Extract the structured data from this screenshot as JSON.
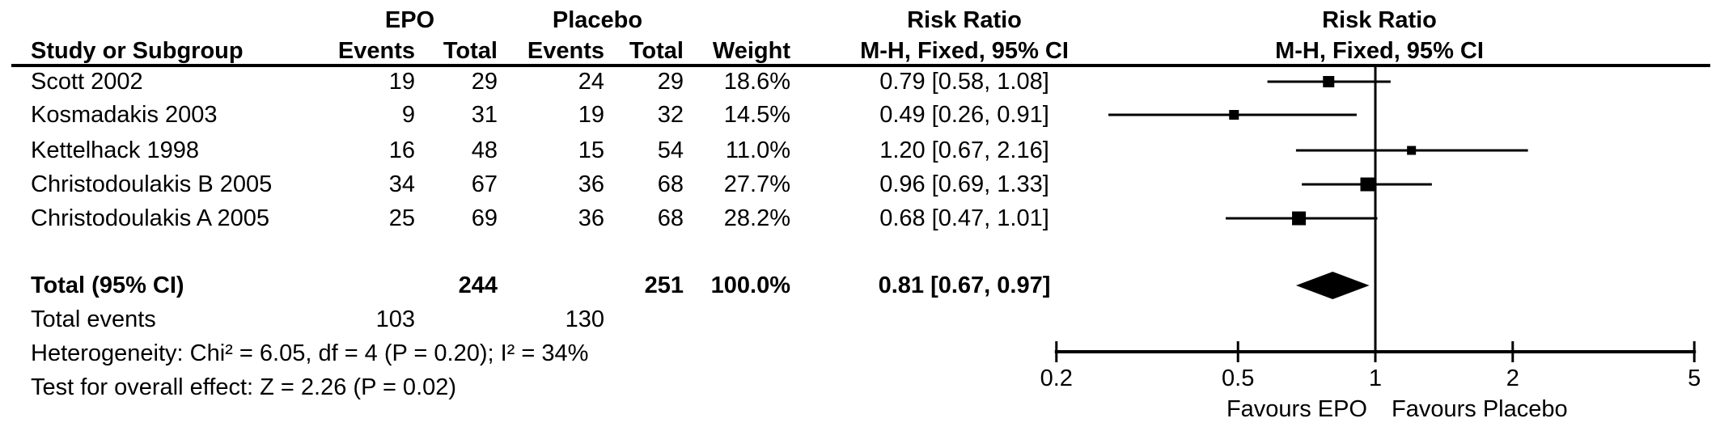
{
  "header": {
    "study_col": "Study or Subgroup",
    "group1": "EPO",
    "group2": "Placebo",
    "events": "Events",
    "total": "Total",
    "weight": "Weight",
    "effect1_title": "Risk Ratio",
    "effect1_sub": "M-H, Fixed, 95% CI",
    "effect2_title": "Risk Ratio",
    "effect2_sub": "M-H, Fixed, 95% CI"
  },
  "chart_data": {
    "type": "forest",
    "x_scale": "log",
    "x_ticks": [
      "0.2",
      "0.5",
      "1",
      "2",
      "5"
    ],
    "x_range": [
      0.2,
      5
    ],
    "null_value": 1,
    "marker_color": "#000000",
    "axis_labels": {
      "left": "Favours EPO",
      "right": "Favours Placebo"
    },
    "studies": [
      {
        "name": "Scott 2002",
        "epo_events": 19,
        "epo_total": 29,
        "placebo_events": 24,
        "placebo_total": 29,
        "weight": "18.6%",
        "weight_pct": 18.6,
        "rr": 0.79,
        "ci_low": 0.58,
        "ci_high": 1.08,
        "ci_text": "0.79 [0.58, 1.08]"
      },
      {
        "name": "Kosmadakis 2003",
        "epo_events": 9,
        "epo_total": 31,
        "placebo_events": 19,
        "placebo_total": 32,
        "weight": "14.5%",
        "weight_pct": 14.5,
        "rr": 0.49,
        "ci_low": 0.26,
        "ci_high": 0.91,
        "ci_text": "0.49 [0.26, 0.91]"
      },
      {
        "name": "Kettelhack 1998",
        "epo_events": 16,
        "epo_total": 48,
        "placebo_events": 15,
        "placebo_total": 54,
        "weight": "11.0%",
        "weight_pct": 11.0,
        "rr": 1.2,
        "ci_low": 0.67,
        "ci_high": 2.16,
        "ci_text": "1.20 [0.67, 2.16]"
      },
      {
        "name": "Christodoulakis B 2005",
        "epo_events": 34,
        "epo_total": 67,
        "placebo_events": 36,
        "placebo_total": 68,
        "weight": "27.7%",
        "weight_pct": 27.7,
        "rr": 0.96,
        "ci_low": 0.69,
        "ci_high": 1.33,
        "ci_text": "0.96 [0.69, 1.33]"
      },
      {
        "name": "Christodoulakis A 2005",
        "epo_events": 25,
        "epo_total": 69,
        "placebo_events": 36,
        "placebo_total": 68,
        "weight": "28.2%",
        "weight_pct": 28.2,
        "rr": 0.68,
        "ci_low": 0.47,
        "ci_high": 1.01,
        "ci_text": "0.68 [0.47, 1.01]"
      }
    ],
    "total": {
      "label": "Total (95% CI)",
      "epo_total": 244,
      "placebo_total": 251,
      "weight": "100.0%",
      "rr": 0.81,
      "ci_low": 0.67,
      "ci_high": 0.97,
      "ci_text": "0.81 [0.67, 0.97]"
    },
    "total_events": {
      "label": "Total events",
      "epo_events": 103,
      "placebo_events": 130
    },
    "heterogeneity": "Heterogeneity: Chi² = 6.05, df = 4 (P = 0.20); I² = 34%",
    "overall_effect": "Test for overall effect: Z = 2.26 (P = 0.02)"
  }
}
